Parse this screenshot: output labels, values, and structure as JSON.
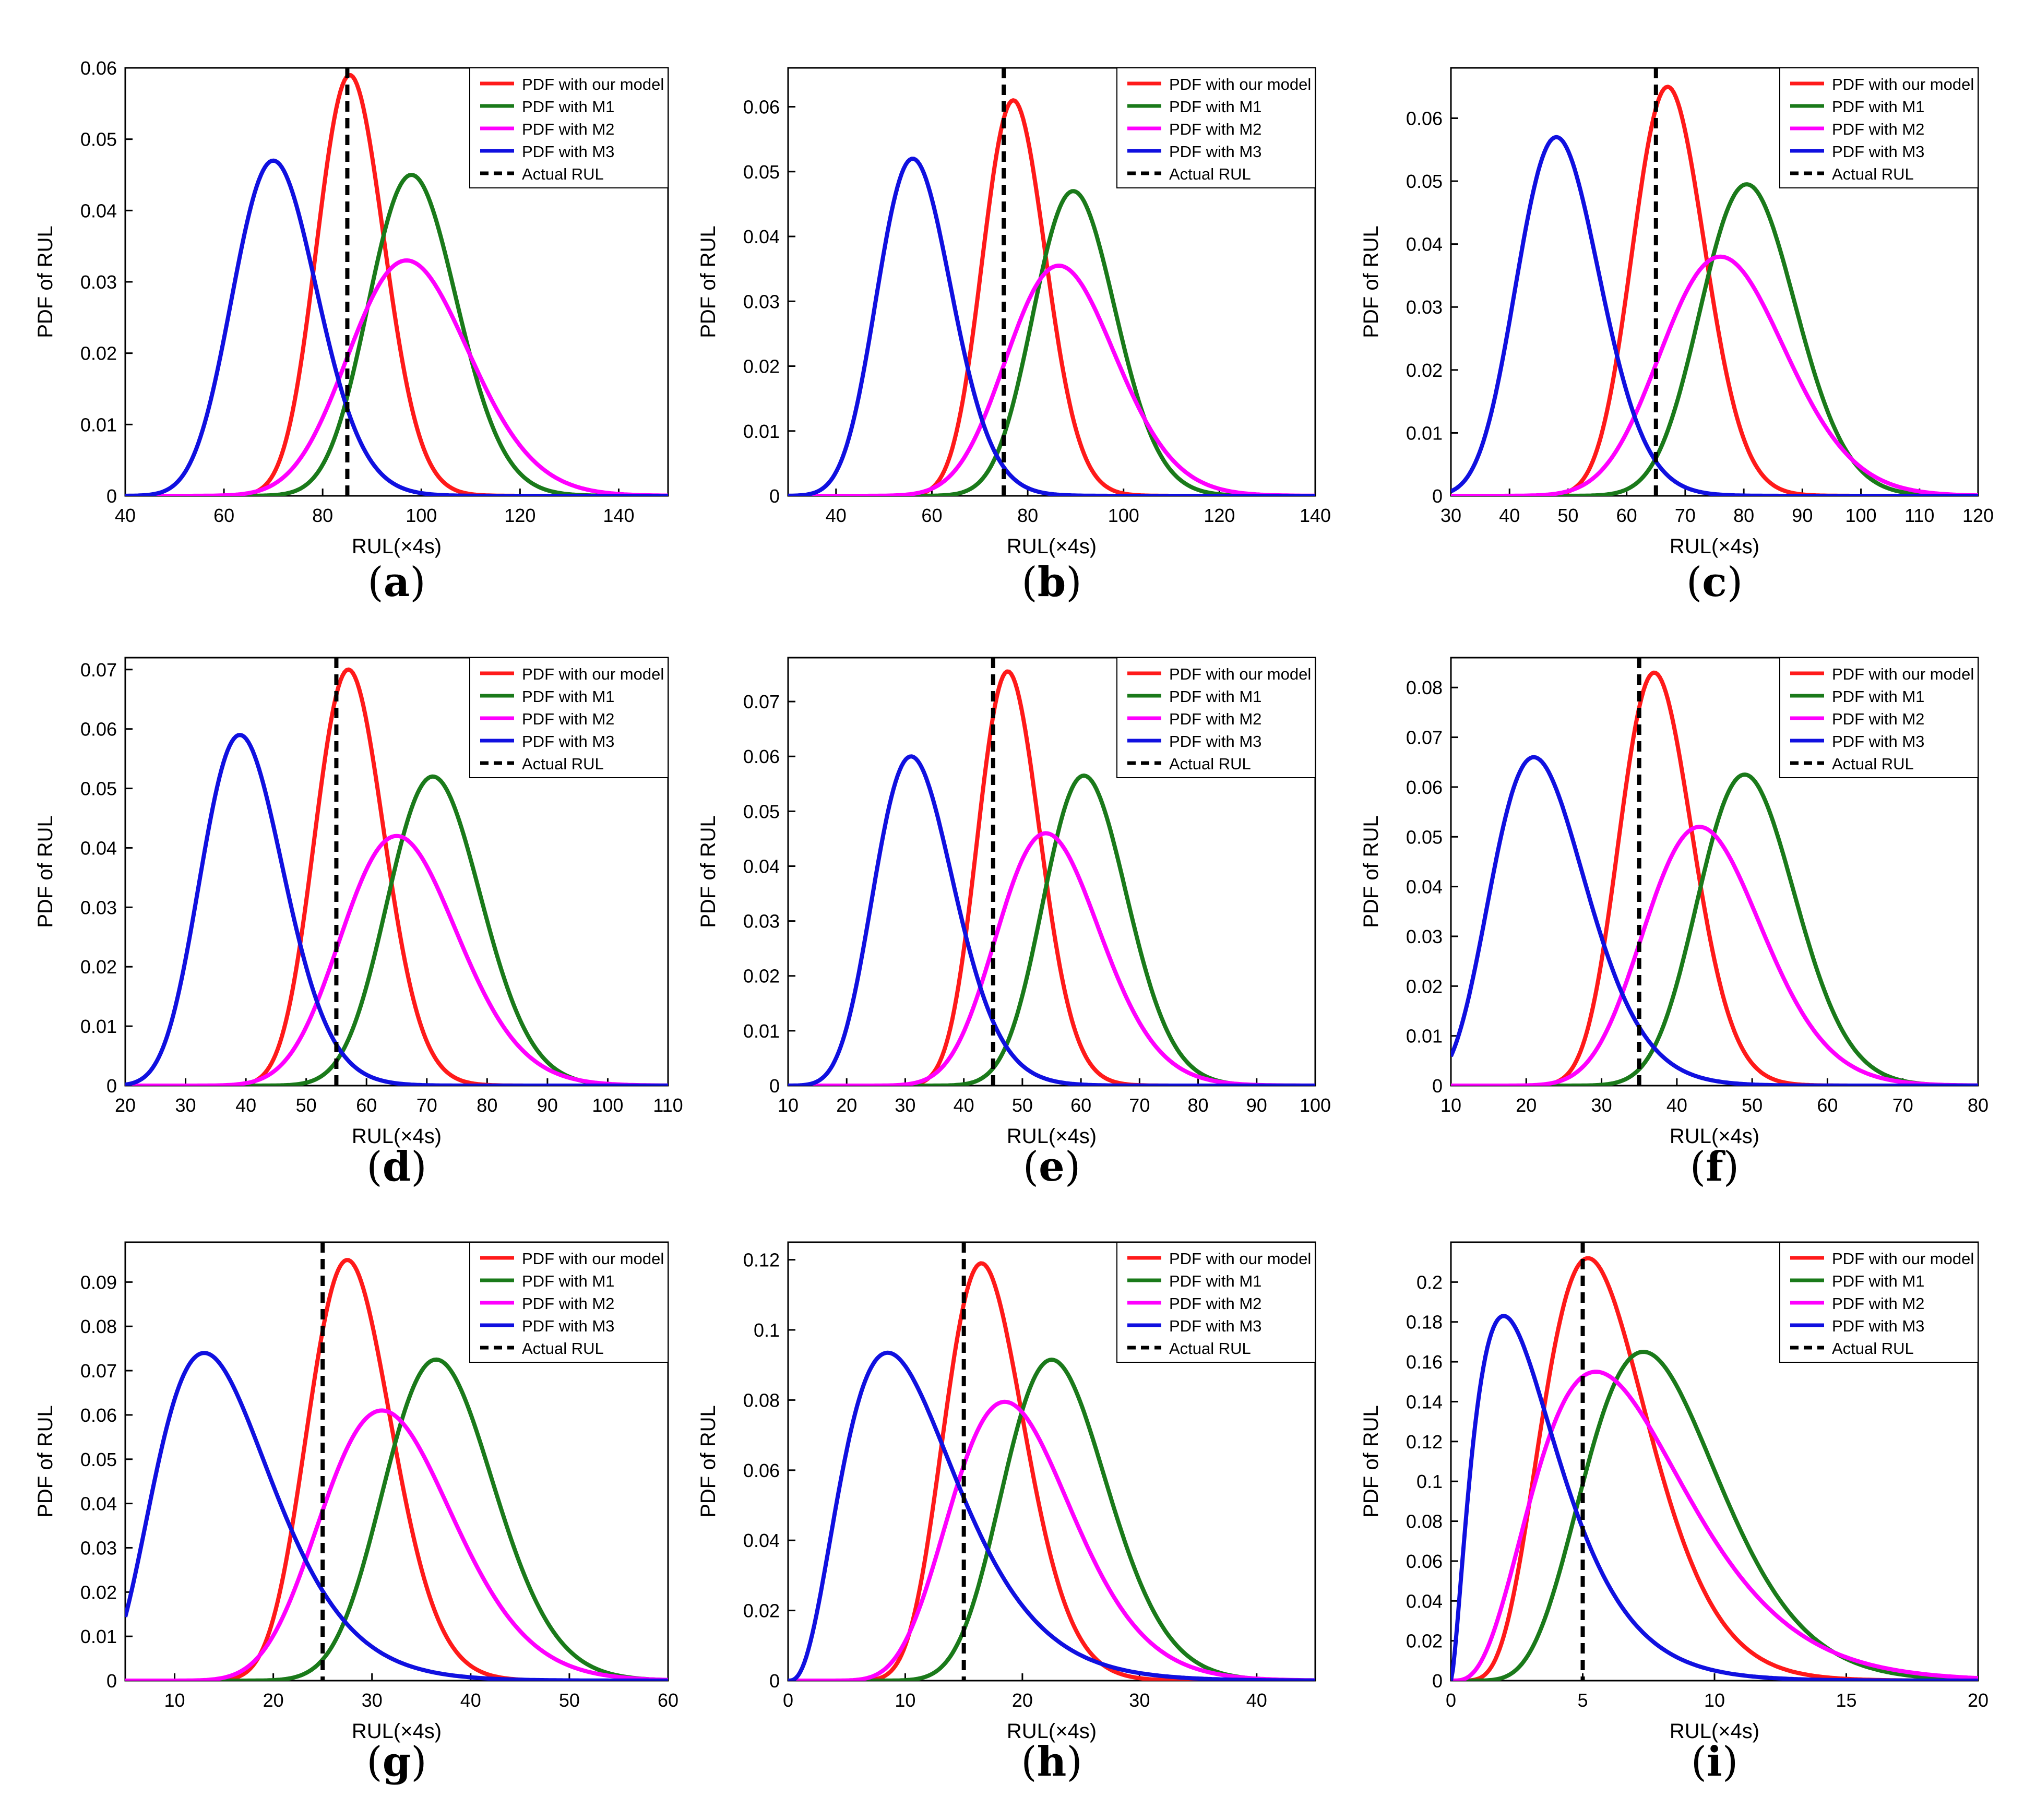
{
  "series_names": [
    "PDF with our model",
    "PDF with M1",
    "PDF with M2",
    "PDF with M3",
    "Actual RUL"
  ],
  "colors": {
    "ours": "#ff1a1a",
    "m1": "#1a7a1a",
    "m2": "#ff00ff",
    "m3": "#1010e0",
    "actual": "#000000"
  },
  "chart_data": [
    {
      "id": "a",
      "caption_letter": "a",
      "type": "line",
      "xlabel": "RUL(×4s)",
      "ylabel": "PDF of RUL",
      "xlim": [
        40,
        150
      ],
      "ylim": [
        0,
        0.06
      ],
      "xticks": [
        40,
        60,
        80,
        100,
        120,
        140
      ],
      "yticks": [
        0,
        0.01,
        0.02,
        0.03,
        0.04,
        0.05,
        0.06
      ],
      "ytick_labels": [
        "0",
        "0.01",
        "0.02",
        "0.03",
        "0.04",
        "0.05",
        "0.06"
      ],
      "actual_rul": 85,
      "legend": "top-right",
      "series": [
        {
          "name": "PDF with our model",
          "mode": 85.5,
          "peak": 0.059
        },
        {
          "name": "PDF with M1",
          "mode": 98,
          "peak": 0.045
        },
        {
          "name": "PDF with M2",
          "mode": 97,
          "peak": 0.033
        },
        {
          "name": "PDF with M3",
          "mode": 70,
          "peak": 0.047
        }
      ]
    },
    {
      "id": "b",
      "caption_letter": "b",
      "type": "line",
      "xlabel": "RUL(×4s)",
      "ylabel": "PDF of RUL",
      "xlim": [
        30,
        140
      ],
      "ylim": [
        0,
        0.066
      ],
      "xticks": [
        40,
        60,
        80,
        100,
        120,
        140
      ],
      "yticks": [
        0,
        0.01,
        0.02,
        0.03,
        0.04,
        0.05,
        0.06
      ],
      "ytick_labels": [
        "0",
        "0.01",
        "0.02",
        "0.03",
        "0.04",
        "0.05",
        "0.06"
      ],
      "actual_rul": 75,
      "legend": "top-right",
      "series": [
        {
          "name": "PDF with our model",
          "mode": 77,
          "peak": 0.061
        },
        {
          "name": "PDF with M1",
          "mode": 89.5,
          "peak": 0.047
        },
        {
          "name": "PDF with M2",
          "mode": 86.5,
          "peak": 0.0355
        },
        {
          "name": "PDF with M3",
          "mode": 56,
          "peak": 0.052
        }
      ]
    },
    {
      "id": "c",
      "caption_letter": "c",
      "type": "line",
      "xlabel": "RUL(×4s)",
      "ylabel": "PDF of RUL",
      "xlim": [
        30,
        120
      ],
      "ylim": [
        0,
        0.068
      ],
      "xticks": [
        30,
        40,
        50,
        60,
        70,
        80,
        90,
        100,
        110,
        120
      ],
      "yticks": [
        0,
        0.01,
        0.02,
        0.03,
        0.04,
        0.05,
        0.06
      ],
      "ytick_labels": [
        "0",
        "0.01",
        "0.02",
        "0.03",
        "0.04",
        "0.05",
        "0.06"
      ],
      "actual_rul": 65,
      "legend": "top-right",
      "series": [
        {
          "name": "PDF with our model",
          "mode": 67,
          "peak": 0.065
        },
        {
          "name": "PDF with M1",
          "mode": 80.5,
          "peak": 0.0495
        },
        {
          "name": "PDF with M2",
          "mode": 76,
          "peak": 0.038
        },
        {
          "name": "PDF with M3",
          "mode": 48,
          "peak": 0.057
        }
      ]
    },
    {
      "id": "d",
      "caption_letter": "d",
      "type": "line",
      "xlabel": "RUL(×4s)",
      "ylabel": "PDF of RUL",
      "xlim": [
        20,
        110
      ],
      "ylim": [
        0,
        0.072
      ],
      "xticks": [
        20,
        30,
        40,
        50,
        60,
        70,
        80,
        90,
        100,
        110
      ],
      "yticks": [
        0,
        0.01,
        0.02,
        0.03,
        0.04,
        0.05,
        0.06,
        0.07
      ],
      "ytick_labels": [
        "0",
        "0.01",
        "0.02",
        "0.03",
        "0.04",
        "0.05",
        "0.06",
        "0.07"
      ],
      "actual_rul": 55,
      "legend": "top-right",
      "series": [
        {
          "name": "PDF with our model",
          "mode": 57,
          "peak": 0.07
        },
        {
          "name": "PDF with M1",
          "mode": 71,
          "peak": 0.052
        },
        {
          "name": "PDF with M2",
          "mode": 65,
          "peak": 0.042
        },
        {
          "name": "PDF with M3",
          "mode": 39,
          "peak": 0.059
        }
      ]
    },
    {
      "id": "e",
      "caption_letter": "e",
      "type": "line",
      "xlabel": "RUL(×4s)",
      "ylabel": "PDF of RUL",
      "xlim": [
        10,
        100
      ],
      "ylim": [
        0,
        0.078
      ],
      "xticks": [
        10,
        20,
        30,
        40,
        50,
        60,
        70,
        80,
        90,
        100
      ],
      "yticks": [
        0,
        0.01,
        0.02,
        0.03,
        0.04,
        0.05,
        0.06,
        0.07
      ],
      "ytick_labels": [
        "0",
        "0.01",
        "0.02",
        "0.03",
        "0.04",
        "0.05",
        "0.06",
        "0.07"
      ],
      "actual_rul": 45,
      "legend": "top-right",
      "series": [
        {
          "name": "PDF with our model",
          "mode": 47.5,
          "peak": 0.0755
        },
        {
          "name": "PDF with M1",
          "mode": 60.5,
          "peak": 0.0565
        },
        {
          "name": "PDF with M2",
          "mode": 54,
          "peak": 0.046
        },
        {
          "name": "PDF with M3",
          "mode": 31,
          "peak": 0.06
        }
      ]
    },
    {
      "id": "f",
      "caption_letter": "f",
      "type": "line",
      "xlabel": "RUL(×4s)",
      "ylabel": "PDF of RUL",
      "xlim": [
        10,
        80
      ],
      "ylim": [
        0,
        0.086
      ],
      "xticks": [
        10,
        20,
        30,
        40,
        50,
        60,
        70,
        80
      ],
      "yticks": [
        0,
        0.01,
        0.02,
        0.03,
        0.04,
        0.05,
        0.06,
        0.07,
        0.08
      ],
      "ytick_labels": [
        "0",
        "0.01",
        "0.02",
        "0.03",
        "0.04",
        "0.05",
        "0.06",
        "0.07",
        "0.08"
      ],
      "actual_rul": 35,
      "legend": "top-right",
      "series": [
        {
          "name": "PDF with our model",
          "mode": 37,
          "peak": 0.083
        },
        {
          "name": "PDF with M1",
          "mode": 49,
          "peak": 0.0625
        },
        {
          "name": "PDF with M2",
          "mode": 43,
          "peak": 0.052
        },
        {
          "name": "PDF with M3",
          "mode": 21,
          "peak": 0.066
        }
      ]
    },
    {
      "id": "g",
      "caption_letter": "g",
      "type": "line",
      "xlabel": "RUL(×4s)",
      "ylabel": "PDF of RUL",
      "xlim": [
        5,
        60
      ],
      "ylim": [
        0,
        0.099
      ],
      "xticks": [
        10,
        20,
        30,
        40,
        50,
        60
      ],
      "yticks": [
        0,
        0.01,
        0.02,
        0.03,
        0.04,
        0.05,
        0.06,
        0.07,
        0.08,
        0.09
      ],
      "ytick_labels": [
        "0",
        "0.01",
        "0.02",
        "0.03",
        "0.04",
        "0.05",
        "0.06",
        "0.07",
        "0.08",
        "0.09"
      ],
      "actual_rul": 25,
      "legend": "top-right",
      "series": [
        {
          "name": "PDF with our model",
          "mode": 27.5,
          "peak": 0.095
        },
        {
          "name": "PDF with M1",
          "mode": 36.5,
          "peak": 0.0725
        },
        {
          "name": "PDF with M2",
          "mode": 31,
          "peak": 0.061
        },
        {
          "name": "PDF with M3",
          "mode": 13,
          "peak": 0.074
        }
      ]
    },
    {
      "id": "h",
      "caption_letter": "h",
      "type": "line",
      "xlabel": "RUL(×4s)",
      "ylabel": "PDF of RUL",
      "xlim": [
        0,
        45
      ],
      "ylim": [
        0,
        0.125
      ],
      "xticks": [
        0,
        10,
        20,
        30,
        40
      ],
      "yticks": [
        0,
        0.02,
        0.04,
        0.06,
        0.08,
        0.1,
        0.12
      ],
      "ytick_labels": [
        "0",
        "0.02",
        "0.04",
        "0.06",
        "0.08",
        "0.1",
        "0.12"
      ],
      "actual_rul": 15,
      "legend": "top-right",
      "series": [
        {
          "name": "PDF with our model",
          "mode": 16.5,
          "peak": 0.119
        },
        {
          "name": "PDF with M1",
          "mode": 22.5,
          "peak": 0.0915
        },
        {
          "name": "PDF with M2",
          "mode": 18.5,
          "peak": 0.0795
        },
        {
          "name": "PDF with M3",
          "mode": 8.5,
          "peak": 0.0935
        }
      ]
    },
    {
      "id": "i",
      "caption_letter": "i",
      "type": "line",
      "xlabel": "RUL(×4s)",
      "ylabel": "PDF of RUL",
      "xlim": [
        0,
        20
      ],
      "ylim": [
        0,
        0.22
      ],
      "xticks": [
        0,
        5,
        10,
        15,
        20
      ],
      "yticks": [
        0,
        0.02,
        0.04,
        0.06,
        0.08,
        0.1,
        0.12,
        0.14,
        0.16,
        0.18,
        0.2
      ],
      "ytick_labels": [
        "0",
        "0.02",
        "0.04",
        "0.06",
        "0.08",
        "0.1",
        "0.12",
        "0.14",
        "0.16",
        "0.18",
        "0.2"
      ],
      "actual_rul": 5,
      "legend": "top-right",
      "series": [
        {
          "name": "PDF with our model",
          "mode": 5.2,
          "peak": 0.212
        },
        {
          "name": "PDF with M1",
          "mode": 7.3,
          "peak": 0.165
        },
        {
          "name": "PDF with M2",
          "mode": 5.5,
          "peak": 0.155
        },
        {
          "name": "PDF with M3",
          "mode": 2,
          "peak": 0.183
        }
      ]
    }
  ]
}
